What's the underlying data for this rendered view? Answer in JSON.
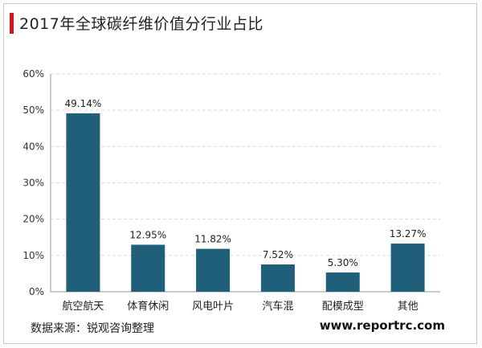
{
  "header": {
    "title": "2017年全球碳纤维价值分行业占比"
  },
  "footer": {
    "source": "数据来源：锐观咨询整理",
    "website": "www.reportrc.com"
  },
  "colors": {
    "bar": "#1f5f7a",
    "accent": "#d7141a",
    "grid": "#d9d9d9"
  },
  "chart_data": {
    "type": "bar",
    "title": "2017年全球碳纤维价值分行业占比",
    "categories": [
      "航空航天",
      "体育休闲",
      "风电叶片",
      "汽车混",
      "配模成型",
      "其他"
    ],
    "values": [
      49.14,
      12.95,
      11.82,
      7.52,
      5.3,
      13.27
    ],
    "data_labels": [
      "49.14%",
      "12.95%",
      "11.82%",
      "7.52%",
      "5.30%",
      "13.27%"
    ],
    "yticks": [
      "0%",
      "10%",
      "20%",
      "30%",
      "40%",
      "50%",
      "60%"
    ],
    "ylim": [
      0,
      60
    ],
    "grid": true,
    "legend": "none"
  }
}
